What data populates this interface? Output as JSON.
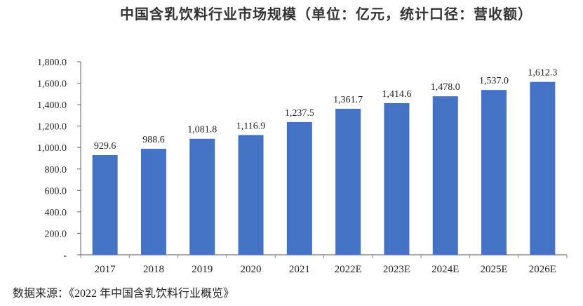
{
  "chart_data": {
    "type": "bar",
    "title": "中国含乳饮料行业市场规模（单位：亿元，统计口径：营收额）",
    "categories": [
      "2017",
      "2018",
      "2019",
      "2020",
      "2021",
      "2022E",
      "2023E",
      "2024E",
      "2025E",
      "2026E"
    ],
    "values": [
      929.6,
      988.6,
      1081.8,
      1116.9,
      1237.5,
      1361.7,
      1414.6,
      1478.0,
      1537.0,
      1612.3
    ],
    "value_labels": [
      "929.6",
      "988.6",
      "1,081.8",
      "1,116.9",
      "1,237.5",
      "1,361.7",
      "1,414.6",
      "1,478.0",
      "1,537.0",
      "1,612.3"
    ],
    "ylim": [
      0,
      1800
    ],
    "yticks": [
      0,
      200,
      400,
      600,
      800,
      1000,
      1200,
      1400,
      1600,
      1800
    ],
    "ytick_labels": [
      "-",
      "200.0",
      "400.0",
      "600.0",
      "800.0",
      "1,000.0",
      "1,200.0",
      "1,400.0",
      "1,600.0",
      "1,800.0"
    ],
    "xlabel": "",
    "ylabel": "",
    "grid": false,
    "bar_color": "#4472C4"
  },
  "source": "数据来源：《2022 年中国含乳饮料行业概览》"
}
